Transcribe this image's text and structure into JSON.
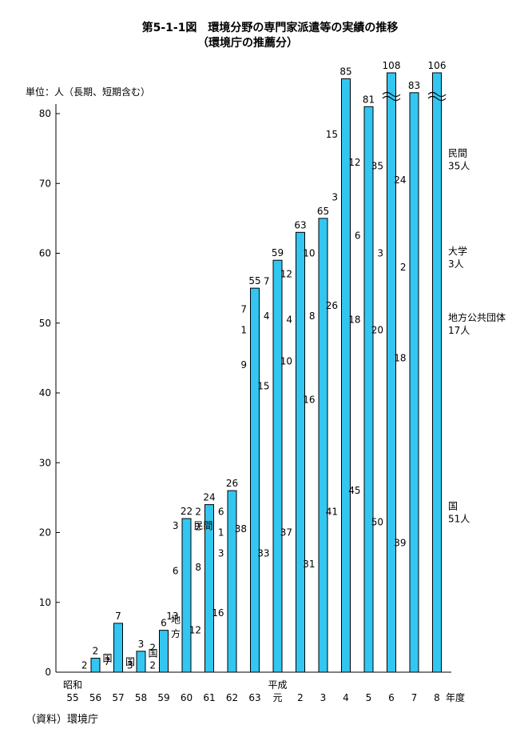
{
  "chart_data": {
    "type": "bar",
    "title": "第5-1-1図　環境分野の専門家派遣等の実績の推移",
    "subtitle": "（環境庁の推薦分）",
    "ylabel": "単位：人（長期、短期含む）",
    "xlabel": "年度",
    "ylim": [
      0,
      80
    ],
    "yticks": [
      0,
      10,
      20,
      30,
      40,
      50,
      60,
      70,
      80
    ],
    "categories": [
      "55",
      "56",
      "57",
      "58",
      "59",
      "60",
      "61",
      "62",
      "63",
      "元",
      "2",
      "3",
      "4",
      "5",
      "6",
      "7",
      "8"
    ],
    "era_labels": [
      {
        "category_index": 0,
        "text": "昭和"
      },
      {
        "category_index": 9,
        "text": "平成"
      }
    ],
    "values": [
      0,
      2,
      7,
      3,
      6,
      22,
      24,
      26,
      55,
      59,
      63,
      65,
      85,
      81,
      108,
      83,
      106
    ],
    "breaks": [
      14,
      16
    ],
    "segments": [
      {
        "index": 1,
        "labels": [
          {
            "y": 1,
            "text": "2"
          }
        ],
        "side_labels": [
          {
            "y": 2,
            "text": "国"
          }
        ]
      },
      {
        "index": 2,
        "labels": [
          {
            "y": 1.5,
            "text": "7"
          }
        ],
        "side_labels": [
          {
            "y": 1.5,
            "text": "国"
          }
        ]
      },
      {
        "index": 3,
        "labels": [
          {
            "y": 1,
            "text": "3"
          }
        ],
        "side_labels": [
          {
            "y": 2.7,
            "text": "国"
          }
        ]
      },
      {
        "index": 4,
        "labels": [
          {
            "y": 1,
            "text": "2"
          },
          {
            "y": 3.5,
            "text": "2"
          }
        ],
        "side_labels": [
          {
            "y": 5.5,
            "text": "方"
          },
          {
            "y": 7.5,
            "text": "地"
          }
        ]
      },
      {
        "index": 5,
        "labels": [
          {
            "y": 8,
            "text": "13"
          },
          {
            "y": 14.5,
            "text": "6"
          },
          {
            "y": 21,
            "text": "3"
          }
        ],
        "side_labels": [
          {
            "y": 21,
            "text": "民間"
          }
        ]
      },
      {
        "index": 6,
        "labels": [
          {
            "y": 6,
            "text": "12"
          },
          {
            "y": 15,
            "text": "8"
          },
          {
            "y": 20.8,
            "text": "2"
          },
          {
            "y": 23,
            "text": "2"
          }
        ]
      },
      {
        "index": 7,
        "labels": [
          {
            "y": 8.5,
            "text": "16"
          },
          {
            "y": 17,
            "text": "3"
          },
          {
            "y": 20,
            "text": "1"
          },
          {
            "y": 23,
            "text": "6"
          }
        ]
      },
      {
        "index": 8,
        "labels": [
          {
            "y": 20.5,
            "text": "38"
          },
          {
            "y": 44,
            "text": "9"
          },
          {
            "y": 49,
            "text": "1"
          },
          {
            "y": 52,
            "text": "7"
          }
        ]
      },
      {
        "index": 9,
        "labels": [
          {
            "y": 17,
            "text": "33"
          },
          {
            "y": 41,
            "text": "15"
          },
          {
            "y": 51,
            "text": "4"
          },
          {
            "y": 56,
            "text": "7"
          }
        ]
      },
      {
        "index": 10,
        "labels": [
          {
            "y": 20,
            "text": "37"
          },
          {
            "y": 44.5,
            "text": "10"
          },
          {
            "y": 50.5,
            "text": "4"
          },
          {
            "y": 57,
            "text": "12"
          }
        ]
      },
      {
        "index": 11,
        "labels": [
          {
            "y": 15.5,
            "text": "31"
          },
          {
            "y": 39,
            "text": "16"
          },
          {
            "y": 51,
            "text": "8"
          },
          {
            "y": 60,
            "text": "10"
          }
        ]
      },
      {
        "index": 12,
        "labels": [
          {
            "y": 23,
            "text": "41"
          },
          {
            "y": 52.5,
            "text": "26"
          },
          {
            "y": 68,
            "text": "3"
          },
          {
            "y": 77,
            "text": "15"
          }
        ]
      },
      {
        "index": 13,
        "labels": [
          {
            "y": 26,
            "text": "45"
          },
          {
            "y": 50.5,
            "text": "18"
          },
          {
            "y": 62.5,
            "text": "6"
          },
          {
            "y": 73,
            "text": "12"
          }
        ]
      },
      {
        "index": 14,
        "labels": [
          {
            "y": 21.5,
            "text": "50"
          },
          {
            "y": 49,
            "text": "20"
          },
          {
            "y": 60,
            "text": "3"
          },
          {
            "y": 72.5,
            "text": "35"
          }
        ]
      },
      {
        "index": 15,
        "labels": [
          {
            "y": 18.5,
            "text": "39"
          },
          {
            "y": 45,
            "text": "18"
          },
          {
            "y": 58,
            "text": "2"
          },
          {
            "y": 70.5,
            "text": "24"
          }
        ]
      }
    ],
    "legend": [
      {
        "label": "民間",
        "value": "35人",
        "y": 73.5
      },
      {
        "label": "大学",
        "value": "3人",
        "y": 59.5
      },
      {
        "label": "地方公共団体",
        "value": "17人",
        "y": 50
      },
      {
        "label": "国",
        "value": "51人",
        "y": 23
      }
    ],
    "bar_color": "#33c6f0",
    "grid": false
  },
  "source": "（資料）環境庁"
}
